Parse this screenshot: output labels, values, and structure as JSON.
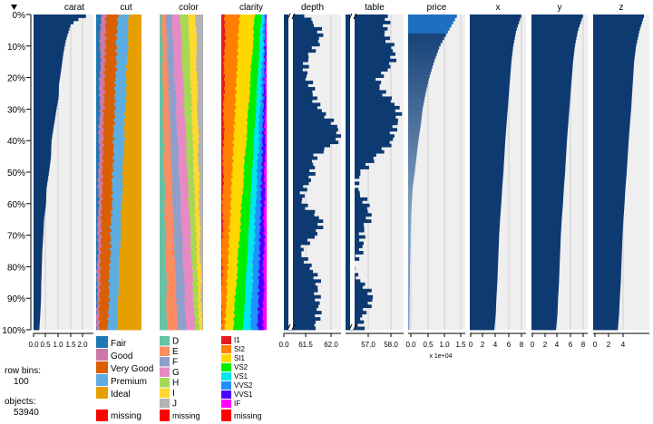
{
  "chart_data": {
    "type": "tableplot",
    "row_labels": [
      "0%",
      "10%",
      "20%",
      "30%",
      "40%",
      "50%",
      "60%",
      "70%",
      "80%",
      "90%",
      "100%"
    ],
    "sorted_by": "carat",
    "columns": [
      {
        "name": "carat",
        "kind": "numeric",
        "ticks": [
          "0.0",
          "0.5",
          "1.0",
          "1.5",
          "2.0"
        ],
        "xlim": [
          0,
          2.4
        ],
        "profile": [
          [
            0,
            2.3
          ],
          [
            1,
            1.9
          ],
          [
            3,
            1.5
          ],
          [
            8,
            1.3
          ],
          [
            12,
            1.2
          ],
          [
            18,
            1.1
          ],
          [
            22,
            1.02
          ],
          [
            26,
            1.01
          ],
          [
            30,
            0.92
          ],
          [
            35,
            0.82
          ],
          [
            40,
            0.72
          ],
          [
            45,
            0.7
          ],
          [
            50,
            0.62
          ],
          [
            55,
            0.52
          ],
          [
            60,
            0.5
          ],
          [
            65,
            0.42
          ],
          [
            70,
            0.39
          ],
          [
            75,
            0.35
          ],
          [
            80,
            0.33
          ],
          [
            85,
            0.31
          ],
          [
            90,
            0.3
          ],
          [
            95,
            0.27
          ],
          [
            100,
            0.23
          ]
        ]
      },
      {
        "name": "cut",
        "kind": "categorical",
        "categories": [
          "Fair",
          "Good",
          "Very Good",
          "Premium",
          "Ideal"
        ],
        "colors": [
          "#1F78B4",
          "#CC79A7",
          "#D95F02",
          "#5DADE2",
          "#E69F00"
        ],
        "shares_top": [
          0.1,
          0.12,
          0.25,
          0.25,
          0.28
        ],
        "shares_bottom": [
          0.01,
          0.05,
          0.2,
          0.2,
          0.54
        ]
      },
      {
        "name": "color",
        "kind": "categorical",
        "categories": [
          "D",
          "E",
          "F",
          "G",
          "H",
          "I",
          "J"
        ],
        "colors": [
          "#66C2A5",
          "#FC8D62",
          "#8DA0CB",
          "#E78AC3",
          "#A6D854",
          "#FFD92F",
          "#B3B3B3"
        ],
        "shares_top": [
          0.05,
          0.09,
          0.14,
          0.19,
          0.19,
          0.17,
          0.17
        ],
        "shares_bottom": [
          0.17,
          0.24,
          0.2,
          0.2,
          0.1,
          0.06,
          0.03
        ]
      },
      {
        "name": "clarity",
        "kind": "categorical",
        "categories": [
          "I1",
          "SI2",
          "SI1",
          "VS2",
          "VS1",
          "VVS2",
          "VVS1",
          "IF"
        ],
        "colors": [
          "#E31A1C",
          "#FF7F00",
          "#FFD700",
          "#00EE00",
          "#00E5EE",
          "#1E90FF",
          "#4B00FF",
          "#FF00FF"
        ],
        "shares_top": [
          0.08,
          0.32,
          0.34,
          0.14,
          0.07,
          0.03,
          0.01,
          0.01
        ],
        "shares_bottom": [
          0.0,
          0.08,
          0.18,
          0.22,
          0.16,
          0.16,
          0.12,
          0.08
        ]
      },
      {
        "name": "depth",
        "kind": "numeric",
        "ticks": [
          "0.0",
          "61.5",
          "62.0"
        ],
        "broken_axis": true,
        "profile": [
          [
            0,
            0.45
          ],
          [
            5,
            0.6
          ],
          [
            10,
            0.55
          ],
          [
            15,
            0.45
          ],
          [
            20,
            0.35
          ],
          [
            25,
            0.5
          ],
          [
            30,
            0.7
          ],
          [
            35,
            0.85
          ],
          [
            40,
            0.95
          ],
          [
            45,
            0.6
          ],
          [
            50,
            0.45
          ],
          [
            55,
            0.35
          ],
          [
            60,
            0.4
          ],
          [
            65,
            0.6
          ],
          [
            70,
            0.55
          ],
          [
            75,
            0.35
          ],
          [
            80,
            0.4
          ],
          [
            85,
            0.6
          ],
          [
            90,
            0.65
          ],
          [
            95,
            0.55
          ],
          [
            100,
            0.5
          ]
        ]
      },
      {
        "name": "table",
        "kind": "numeric",
        "ticks": [
          "57.0",
          "58.0"
        ],
        "broken_axis": true,
        "profile": [
          [
            0,
            0.65
          ],
          [
            5,
            0.7
          ],
          [
            10,
            0.85
          ],
          [
            15,
            0.75
          ],
          [
            20,
            0.6
          ],
          [
            25,
            0.7
          ],
          [
            30,
            0.85
          ],
          [
            35,
            0.9
          ],
          [
            40,
            0.85
          ],
          [
            45,
            0.45
          ],
          [
            50,
            0.3
          ],
          [
            55,
            0.2
          ],
          [
            60,
            0.3
          ],
          [
            65,
            0.45
          ],
          [
            70,
            0.3
          ],
          [
            75,
            0.2
          ],
          [
            80,
            0.15
          ],
          [
            85,
            0.3
          ],
          [
            90,
            0.4
          ],
          [
            95,
            0.35
          ],
          [
            100,
            0.3
          ]
        ]
      },
      {
        "name": "price",
        "kind": "numeric",
        "ticks": [
          "0.0",
          "0.5",
          "1.0",
          "1.5"
        ],
        "multiplier": "x 1e+04",
        "xlim": [
          0,
          1.9
        ],
        "profile": [
          [
            0,
            1.65
          ],
          [
            5,
            1.35
          ],
          [
            10,
            1.05
          ],
          [
            15,
            0.86
          ],
          [
            20,
            0.7
          ],
          [
            25,
            0.58
          ],
          [
            30,
            0.48
          ],
          [
            35,
            0.42
          ],
          [
            40,
            0.34
          ],
          [
            45,
            0.28
          ],
          [
            50,
            0.22
          ],
          [
            55,
            0.15
          ],
          [
            60,
            0.12
          ],
          [
            65,
            0.1
          ],
          [
            70,
            0.08
          ],
          [
            75,
            0.07
          ],
          [
            80,
            0.06
          ],
          [
            85,
            0.06
          ],
          [
            90,
            0.05
          ],
          [
            95,
            0.05
          ],
          [
            100,
            0.04
          ]
        ]
      },
      {
        "name": "x",
        "kind": "numeric",
        "ticks": [
          "0",
          "2",
          "4",
          "6",
          "8"
        ],
        "xlim": [
          0,
          9.2
        ],
        "profile": [
          [
            0,
            8.5
          ],
          [
            5,
            7.6
          ],
          [
            10,
            7.1
          ],
          [
            15,
            6.8
          ],
          [
            20,
            6.6
          ],
          [
            25,
            6.4
          ],
          [
            30,
            6.2
          ],
          [
            35,
            6.0
          ],
          [
            40,
            5.8
          ],
          [
            45,
            5.65
          ],
          [
            50,
            5.5
          ],
          [
            55,
            5.3
          ],
          [
            60,
            5.15
          ],
          [
            65,
            4.95
          ],
          [
            70,
            4.8
          ],
          [
            75,
            4.7
          ],
          [
            80,
            4.6
          ],
          [
            85,
            4.5
          ],
          [
            90,
            4.35
          ],
          [
            95,
            4.25
          ],
          [
            100,
            4.0
          ]
        ]
      },
      {
        "name": "y",
        "kind": "numeric",
        "ticks": [
          "0",
          "2",
          "4",
          "6",
          "8"
        ],
        "xlim": [
          0,
          9.2
        ],
        "profile": [
          [
            0,
            8.5
          ],
          [
            5,
            7.6
          ],
          [
            10,
            7.1
          ],
          [
            15,
            6.8
          ],
          [
            20,
            6.6
          ],
          [
            25,
            6.4
          ],
          [
            30,
            6.2
          ],
          [
            35,
            6.0
          ],
          [
            40,
            5.8
          ],
          [
            45,
            5.65
          ],
          [
            50,
            5.5
          ],
          [
            55,
            5.3
          ],
          [
            60,
            5.15
          ],
          [
            65,
            4.95
          ],
          [
            70,
            4.8
          ],
          [
            75,
            4.7
          ],
          [
            80,
            4.6
          ],
          [
            85,
            4.5
          ],
          [
            90,
            4.35
          ],
          [
            95,
            4.25
          ],
          [
            100,
            4.0
          ]
        ]
      },
      {
        "name": "z",
        "kind": "numeric",
        "ticks": [
          "0",
          "2",
          "4"
        ],
        "xlim": [
          0,
          5.7
        ],
        "profile": [
          [
            0,
            5.2
          ],
          [
            5,
            4.7
          ],
          [
            10,
            4.35
          ],
          [
            15,
            4.15
          ],
          [
            20,
            4.05
          ],
          [
            25,
            3.95
          ],
          [
            30,
            3.85
          ],
          [
            35,
            3.72
          ],
          [
            40,
            3.6
          ],
          [
            45,
            3.5
          ],
          [
            50,
            3.4
          ],
          [
            55,
            3.27
          ],
          [
            60,
            3.18
          ],
          [
            65,
            3.07
          ],
          [
            70,
            2.98
          ],
          [
            75,
            2.92
          ],
          [
            80,
            2.86
          ],
          [
            85,
            2.8
          ],
          [
            90,
            2.7
          ],
          [
            95,
            2.63
          ],
          [
            100,
            2.5
          ]
        ]
      }
    ],
    "missing_label": "missing",
    "missing_color": "#FF0000"
  },
  "sidebar": {
    "row_bins_label": "row bins:",
    "row_bins_value": "100",
    "objects_label": "objects:",
    "objects_value": "53940"
  }
}
